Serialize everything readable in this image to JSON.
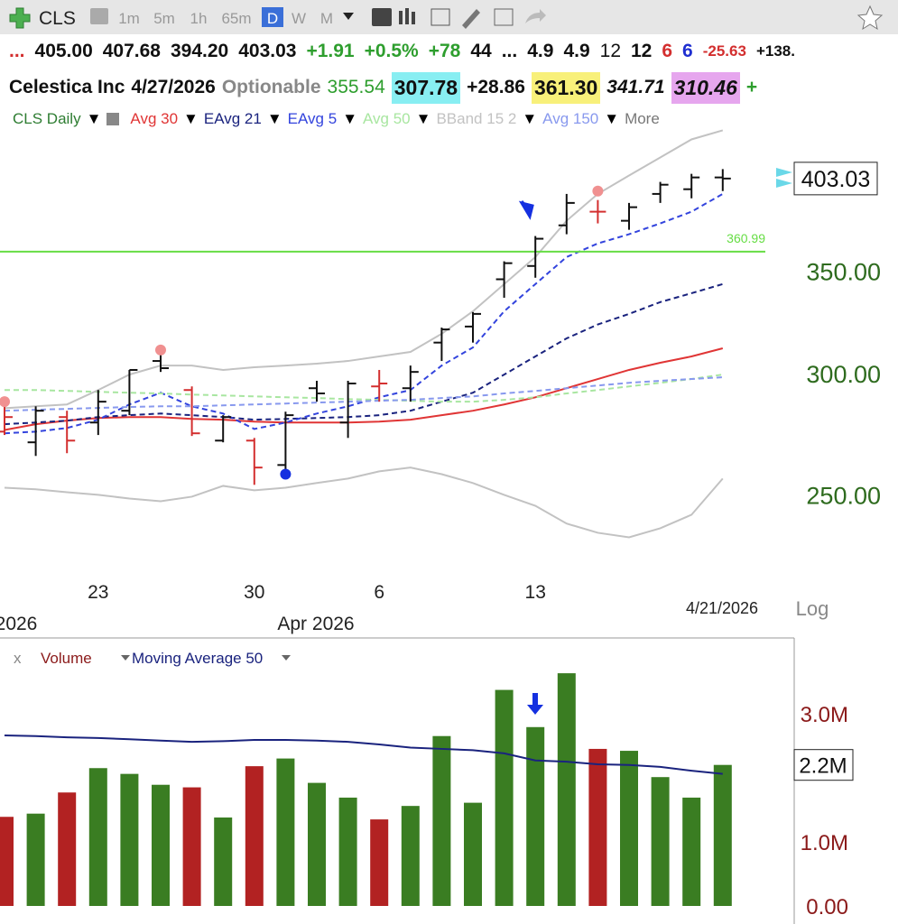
{
  "toolbar": {
    "symbol": "CLS",
    "intervals": [
      "1m",
      "5m",
      "1h",
      "65m",
      "D",
      "W",
      "M"
    ],
    "active_interval_index": 4
  },
  "quote_row": [
    {
      "text": "...",
      "color": "#d32f2f"
    },
    {
      "text": "405.00",
      "color": "#111"
    },
    {
      "text": "407.68",
      "color": "#111"
    },
    {
      "text": "394.20",
      "color": "#111"
    },
    {
      "text": "403.03",
      "color": "#111"
    },
    {
      "text": "+1.91",
      "color": "#2e9e2e"
    },
    {
      "text": "+0.5%",
      "color": "#2e9e2e"
    },
    {
      "text": "+78",
      "color": "#2e9e2e"
    },
    {
      "text": "44",
      "color": "#111"
    },
    {
      "text": "...",
      "color": "#111"
    },
    {
      "text": "4.9",
      "color": "#111"
    },
    {
      "text": "4.9",
      "color": "#111"
    },
    {
      "text": "12",
      "color": "#111",
      "light": true
    },
    {
      "text": "12",
      "color": "#111"
    },
    {
      "text": "6",
      "color": "#d32f2f"
    },
    {
      "text": "6",
      "color": "#1f2fd0"
    },
    {
      "text": "-25.63",
      "color": "#d32f2f",
      "small": true
    },
    {
      "text": "+138.",
      "color": "#111",
      "small": true
    }
  ],
  "info_row": [
    {
      "text": "Celestica Inc",
      "color": "#111"
    },
    {
      "text": "4/27/2026",
      "color": "#111"
    },
    {
      "text": "Optionable",
      "color": "#888"
    },
    {
      "text": "355.54",
      "color": "#2e9e2e",
      "light": true
    },
    {
      "text": "307.78",
      "color": "#111",
      "background": "#88eef2"
    },
    {
      "text": "+28.86",
      "color": "#111"
    },
    {
      "text": "361.30",
      "color": "#111",
      "background": "#f8f07a"
    },
    {
      "text": "341.71",
      "color": "#111",
      "italic": true
    },
    {
      "text": "310.46",
      "color": "#111",
      "italic": true,
      "background": "#e6a6ee"
    },
    {
      "text": "+",
      "color": "#2e9e2e"
    }
  ],
  "chart_data": [
    {
      "type": "ohlc",
      "log_scale": true,
      "scale_label": "Log",
      "legend_more": "More",
      "categories": [
        null,
        null,
        null,
        "23",
        null,
        null,
        null,
        null,
        "30",
        null,
        null,
        null,
        "6",
        null,
        null,
        null,
        null,
        "13",
        null,
        null,
        null,
        null,
        null,
        null
      ],
      "period_labels": [
        "2026",
        "Apr 2026"
      ],
      "date_label": "4/21/2026",
      "ylim": [
        221,
        436
      ],
      "yticks": [
        {
          "value": 250,
          "label": "250.00"
        },
        {
          "value": 300,
          "label": "300.00"
        },
        {
          "value": 350,
          "label": "350.00"
        }
      ],
      "last_price": 403.03,
      "hline": 360.99,
      "hline_color": "#66dd44",
      "price": {
        "name": "CLS Daily",
        "legend_color": "#2e7d32",
        "open": [
          275.3,
          270.9,
          281.4,
          279.1,
          284.1,
          306.2,
          293.1,
          271.6,
          271.6,
          261.8,
          293.9,
          279.1,
          294.7,
          293.9,
          314.8,
          322.5,
          346.3,
          353.3,
          375.6,
          383.4,
          378.2,
          393.8,
          396.6,
          403.7
        ],
        "high": [
          286.0,
          286.0,
          284.1,
          293.1,
          302.1,
          309.1,
          294.7,
          282.2,
          272.7,
          283.7,
          297.2,
          297.2,
          302.1,
          304.1,
          322.0,
          329.6,
          355.8,
          369.6,
          393.8,
          390.2,
          388.5,
          401.0,
          405.9,
          408.8
        ],
        "low": [
          273.9,
          265.4,
          266.5,
          273.9,
          282.2,
          301.2,
          273.5,
          270.9,
          254.1,
          260.1,
          288.0,
          272.7,
          288.0,
          288.0,
          306.2,
          314.8,
          336.8,
          347.1,
          370.6,
          376.7,
          373.1,
          388.5,
          391.2,
          395.5
        ],
        "close": [
          281.4,
          284.1,
          271.6,
          288.0,
          302.1,
          302.9,
          274.6,
          281.4,
          260.8,
          282.2,
          291.6,
          296.0,
          296.0,
          301.2,
          321.1,
          328.7,
          354.8,
          368.1,
          388.5,
          383.4,
          386.0,
          399.3,
          403.7,
          403.03
        ],
        "colors": [
          "#d32f2f",
          "#111",
          "#d32f2f",
          "#111",
          "#111",
          "#111",
          "#d32f2f",
          "#111",
          "#d32f2f",
          "#111",
          "#111",
          "#111",
          "#d32f2f",
          "#111",
          "#111",
          "#111",
          "#111",
          "#111",
          "#111",
          "#d32f2f",
          "#111",
          "#111",
          "#111",
          "#111"
        ]
      },
      "series": [
        {
          "name": "Avg 30",
          "color": "#e03535",
          "dashed": false,
          "values": [
            276,
            278.4,
            279.9,
            281,
            281.4,
            281.4,
            280.6,
            280.3,
            279.5,
            279.1,
            279.1,
            279.1,
            279.5,
            280.3,
            282.2,
            284.1,
            286.8,
            289.9,
            293.9,
            298,
            302.1,
            305.4,
            308.3,
            312.1
          ]
        },
        {
          "name": "EAvg 21",
          "color": "#1a237e",
          "dashed": true,
          "values": [
            278.4,
            279.1,
            279.9,
            281.4,
            282.2,
            282.9,
            282.2,
            281.4,
            280.3,
            280.6,
            281,
            281.4,
            282.2,
            284.1,
            288,
            291.9,
            300,
            308.3,
            316.8,
            323.5,
            328.7,
            334.6,
            339.1,
            343.8
          ]
        },
        {
          "name": "EAvg 5",
          "color": "#3344dd",
          "dashed": true,
          "values": [
            274.6,
            275.3,
            276.8,
            280.3,
            286.8,
            291.9,
            286,
            282.9,
            276.4,
            279.1,
            282.9,
            286,
            289.9,
            293.1,
            304.1,
            312.5,
            330,
            343.8,
            358.1,
            365.5,
            370.6,
            376.7,
            383.4,
            393.8
          ]
        },
        {
          "name": "Avg 50",
          "color": "#a8e6a0",
          "dashed": true,
          "values": [
            293.1,
            293.1,
            292.7,
            292.3,
            291.9,
            291.6,
            291.1,
            290.7,
            290.3,
            289.9,
            289.6,
            289.1,
            288.8,
            288.4,
            288,
            288,
            288.8,
            289.9,
            291.6,
            293.1,
            294.7,
            296.3,
            298,
            300
          ]
        },
        {
          "name": "BBand 15 2",
          "color": "#c2c2c2",
          "band": true,
          "upper": [
            285.2,
            286,
            286.8,
            293.1,
            300,
            304.1,
            304.1,
            302.1,
            303.3,
            304.1,
            305,
            306.2,
            308.3,
            310.4,
            319,
            330,
            343.8,
            358.1,
            378.2,
            393.8,
            404.9,
            416,
            427.5,
            433.4
          ],
          "lower": [
            253,
            252.4,
            251.3,
            250.3,
            248.9,
            247.9,
            249.6,
            253.7,
            252,
            253,
            254.8,
            256.5,
            259.3,
            260.8,
            258.2,
            254.8,
            250.3,
            246.2,
            239.7,
            236.4,
            234.8,
            238,
            242.9,
            256.5
          ]
        },
        {
          "name": "Avg 150",
          "color": "#8899ee",
          "dashed": true,
          "values": [
            284.1,
            284.5,
            284.9,
            285.3,
            285.7,
            286,
            286,
            286.4,
            286.8,
            287.2,
            287.6,
            288,
            288.4,
            288.8,
            289.6,
            290.3,
            291.6,
            292.7,
            293.9,
            295.1,
            296.3,
            297.2,
            298,
            298.8
          ]
        }
      ],
      "markers": [
        {
          "index": 0,
          "value": 288,
          "color": "#f09090"
        },
        {
          "index": 5,
          "value": 311.3,
          "color": "#f09090"
        },
        {
          "index": 19,
          "value": 395.5,
          "color": "#f09090"
        },
        {
          "index": 9,
          "value": 258.2,
          "color": "#1530e0"
        }
      ]
    },
    {
      "type": "bar",
      "close_label": "x",
      "ylim": [
        0,
        4110000
      ],
      "yticks": [
        {
          "value": 0,
          "label": "0.00"
        },
        {
          "value": 1000000,
          "label": "1.0M"
        },
        {
          "value": 3000000,
          "label": "3.0M"
        }
      ],
      "last_value": {
        "value": 2200000,
        "label": "2.2M"
      },
      "series": [
        {
          "name": "Volume",
          "color": "#8b1a1a",
          "values": [
            1390000,
            1440000,
            1770000,
            2150000,
            2060000,
            1890000,
            1850000,
            1380000,
            2180000,
            2300000,
            1920000,
            1690000,
            1350000,
            1560000,
            2650000,
            1610000,
            3370000,
            2790000,
            3630000,
            2450000,
            2420000,
            2010000,
            1690000,
            2200000
          ],
          "colors": [
            "#b22222",
            "#3a7d22",
            "#b22222",
            "#3a7d22",
            "#3a7d22",
            "#3a7d22",
            "#b22222",
            "#3a7d22",
            "#b22222",
            "#3a7d22",
            "#3a7d22",
            "#3a7d22",
            "#b22222",
            "#3a7d22",
            "#3a7d22",
            "#3a7d22",
            "#3a7d22",
            "#3a7d22",
            "#3a7d22",
            "#b22222",
            "#3a7d22",
            "#3a7d22",
            "#3a7d22",
            "#3a7d22"
          ]
        },
        {
          "name": "Moving Average 50",
          "color": "#1a237e",
          "values": [
            2660000,
            2650000,
            2630000,
            2620000,
            2600000,
            2580000,
            2560000,
            2570000,
            2590000,
            2590000,
            2580000,
            2560000,
            2520000,
            2470000,
            2450000,
            2430000,
            2380000,
            2270000,
            2250000,
            2210000,
            2200000,
            2170000,
            2110000,
            2060000
          ]
        }
      ]
    }
  ]
}
